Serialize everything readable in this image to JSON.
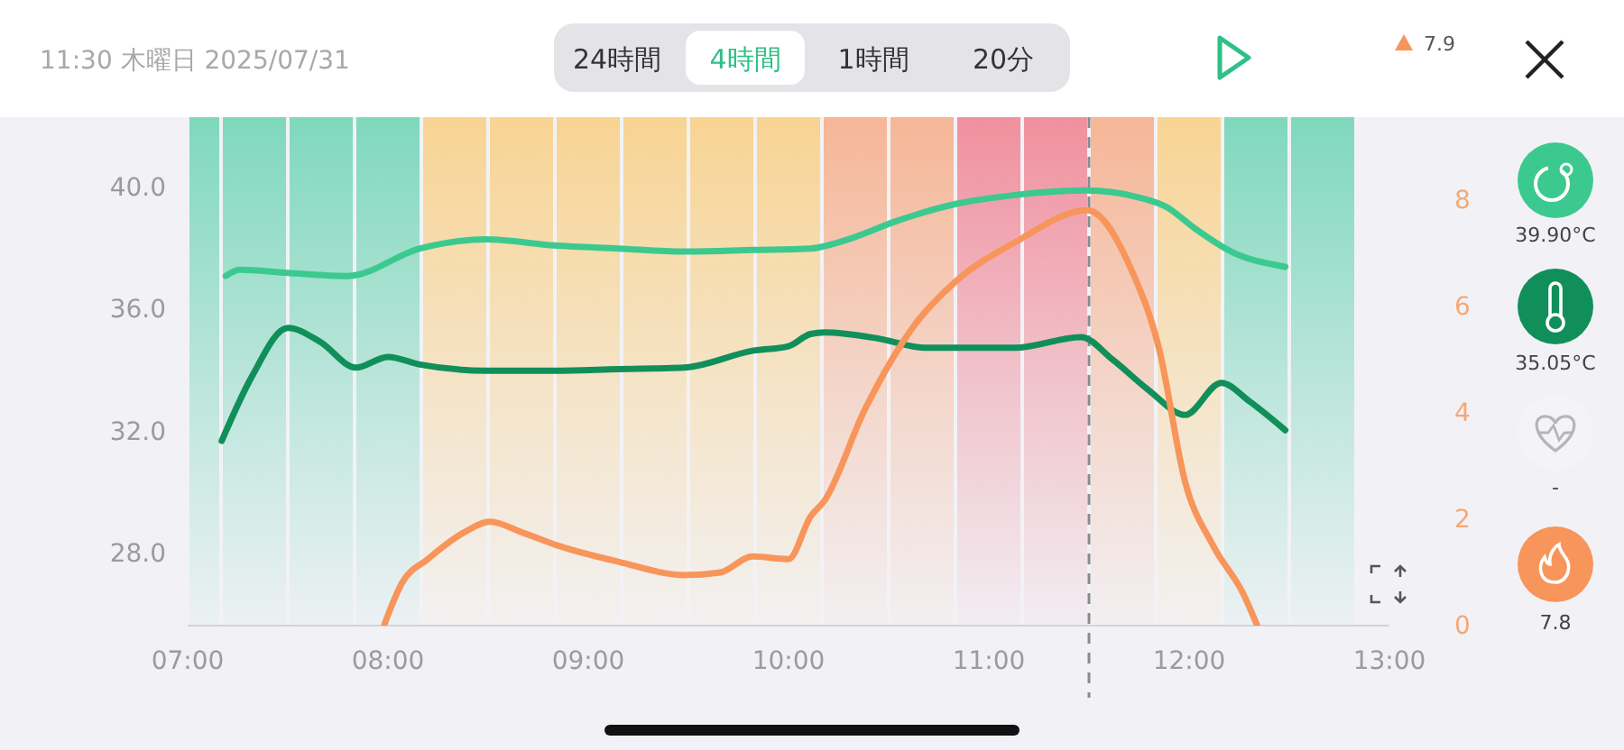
{
  "chart_data": {
    "type": "line",
    "annotations": [
      "11:30 木曜日 2025/07/31",
      "24時間",
      "4時間",
      "1時間",
      "20分",
      "7.9",
      "39.90°C",
      "35.05°C",
      "-",
      "7.8"
    ],
    "xlim": [
      7,
      13
    ],
    "xticks": [
      {
        "value": 7,
        "label": "07:00"
      },
      {
        "value": 8,
        "label": "08:00"
      },
      {
        "value": 9,
        "label": "09:00"
      },
      {
        "value": 10,
        "label": "10:00"
      },
      {
        "value": 11,
        "label": "11:00"
      },
      {
        "value": 12,
        "label": "12:00"
      },
      {
        "value": 13,
        "label": "13:00"
      }
    ],
    "ylim": [
      25.65,
      42.3
    ],
    "yticks": [
      {
        "value": 28,
        "label": "28.0"
      },
      {
        "value": 32,
        "label": "32.0"
      },
      {
        "value": 36,
        "label": "36.0"
      },
      {
        "value": 40,
        "label": "40.0"
      }
    ],
    "y2lim": [
      0,
      9.55
    ],
    "y2ticks": [
      0,
      2,
      4,
      6,
      8
    ],
    "grid": false,
    "bands": [
      {
        "axis": "x",
        "from": 7,
        "to": 7.1667,
        "color": "#7fd8bc"
      },
      {
        "axis": "x",
        "from": 7.1667,
        "to": 7.5,
        "color": "#7fd8bc"
      },
      {
        "axis": "x",
        "from": 7.5,
        "to": 7.8333,
        "color": "#7fd8bc"
      },
      {
        "axis": "x",
        "from": 7.8333,
        "to": 8.1667,
        "color": "#7fd8bc"
      },
      {
        "axis": "x",
        "from": 8.1667,
        "to": 8.5,
        "color": "#f8d493"
      },
      {
        "axis": "x",
        "from": 8.5,
        "to": 8.8333,
        "color": "#f8d493"
      },
      {
        "axis": "x",
        "from": 8.8333,
        "to": 9.1667,
        "color": "#f8d493"
      },
      {
        "axis": "x",
        "from": 9.1667,
        "to": 9.5,
        "color": "#f8d493"
      },
      {
        "axis": "x",
        "from": 9.5,
        "to": 9.8333,
        "color": "#f8d493"
      },
      {
        "axis": "x",
        "from": 9.8333,
        "to": 10.1667,
        "color": "#f8d493"
      },
      {
        "axis": "x",
        "from": 10.1667,
        "to": 10.5,
        "color": "#f6b697"
      },
      {
        "axis": "x",
        "from": 10.5,
        "to": 10.8333,
        "color": "#f6b697"
      },
      {
        "axis": "x",
        "from": 10.8333,
        "to": 11.1667,
        "color": "#f0909e"
      },
      {
        "axis": "x",
        "from": 11.1667,
        "to": 11.5,
        "color": "#f0909e"
      },
      {
        "axis": "x",
        "from": 11.5,
        "to": 11.8333,
        "color": "#f6b697"
      },
      {
        "axis": "x",
        "from": 11.8333,
        "to": 12.1667,
        "color": "#f8d493"
      },
      {
        "axis": "x",
        "from": 12.1667,
        "to": 12.5,
        "color": "#7fd8bc"
      },
      {
        "axis": "x",
        "from": 12.5,
        "to": 12.8333,
        "color": "#7fd8bc"
      }
    ],
    "ref_lines": [
      {
        "axis": "x",
        "value": 11.5,
        "color": "#8a8a8a",
        "line_style": "dashed"
      }
    ],
    "series": [
      {
        "color": "#3cc98f",
        "x": [
          7.19,
          7.26,
          7.5,
          7.8,
          8.16,
          8.49,
          8.83,
          9.15,
          9.48,
          9.82,
          10.11,
          10.32,
          10.54,
          10.83,
          11.13,
          11.49,
          11.73,
          11.89,
          12.03,
          12.21,
          12.48
        ],
        "values": [
          37.1,
          37.3,
          37.2,
          37.1,
          38.0,
          38.3,
          38.1,
          38.0,
          37.9,
          37.95,
          38.0,
          38.35,
          38.9,
          39.45,
          39.75,
          39.9,
          39.7,
          39.35,
          38.65,
          37.9,
          37.4
        ]
      },
      {
        "color": "#118f5b",
        "x": [
          7.17,
          7.32,
          7.5,
          7.66,
          7.84,
          8.0,
          8.16,
          8.49,
          8.83,
          9.15,
          9.48,
          9.82,
          10.0,
          10.11,
          10.18,
          10.45,
          10.68,
          11.13,
          11.46,
          11.62,
          11.8,
          11.98,
          12.16,
          12.3,
          12.48
        ],
        "values": [
          31.7,
          33.8,
          35.4,
          34.95,
          34.1,
          34.45,
          34.2,
          34.0,
          34.0,
          34.05,
          34.1,
          34.65,
          34.8,
          35.2,
          35.25,
          35.05,
          34.75,
          34.75,
          35.1,
          34.35,
          33.35,
          32.55,
          33.6,
          33.0,
          32.05
        ]
      },
      {
        "color": "#f8955a",
        "axis": "y2",
        "x": [
          7.98,
          8.07,
          8.2,
          8.38,
          8.51,
          8.67,
          8.85,
          9.15,
          9.48,
          9.66,
          9.82,
          10.0,
          10.11,
          10.18,
          10.38,
          10.63,
          10.83,
          11.13,
          11.49,
          11.71,
          11.85,
          11.98,
          12.12,
          12.27,
          12.34
        ],
        "values": [
          0,
          0.8,
          1.25,
          1.75,
          1.95,
          1.75,
          1.5,
          1.2,
          0.95,
          1.0,
          1.3,
          1.25,
          2.05,
          2.35,
          4.05,
          5.65,
          6.45,
          7.2,
          7.8,
          6.7,
          5.2,
          2.7,
          1.5,
          0.6,
          0
        ]
      }
    ]
  }
}
